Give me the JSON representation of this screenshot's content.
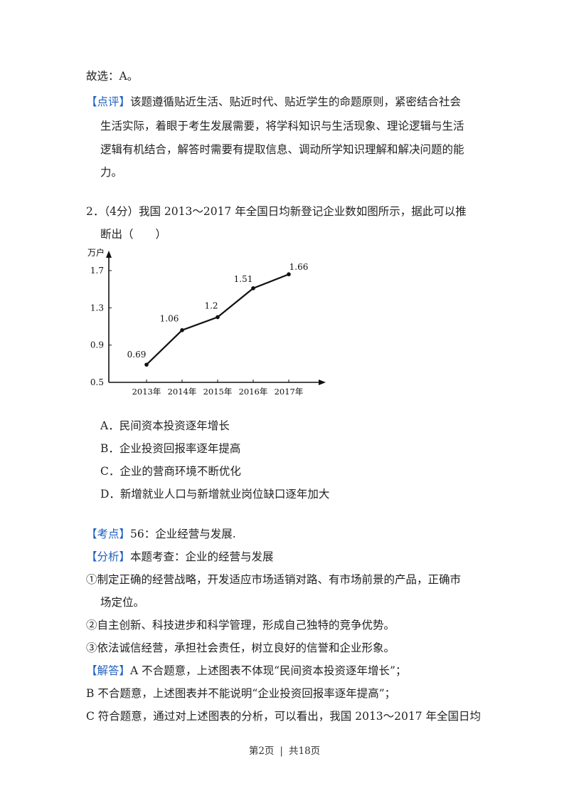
{
  "prev": {
    "answer": "故选：A。",
    "comment_tag": "【点评】",
    "comment_lines": [
      "该题遵循贴近生活、贴近时代、贴近学生的命题原则，紧密结合社会",
      "生活实际，着眼于考生发展需要，将学科知识与生活现象、理论逻辑与生活",
      "逻辑有机结合，解答时需要有提取信息、调动所学知识理解和解决问题的能",
      "力。"
    ]
  },
  "question": {
    "line1": "2．（4分）我国 2013～2017 年全国日均新登记企业数如图所示，据此可以推",
    "line2": "断出（　　）",
    "options": [
      "A．民间资本投资逐年增长",
      "B．企业投资回报率逐年提高",
      "C．企业的营商环境不断优化",
      "D．新增就业人口与新增就业岗位缺口逐年加大"
    ]
  },
  "analysis": {
    "kaodian_tag": "【考点】",
    "kaodian_text": "56：企业经营与发展.",
    "fenxi_tag": "【分析】",
    "fenxi_text": "本题考查：企业的经营与发展",
    "points": [
      "①制定正确的经营战略，开发适应市场适销对路、有市场前景的产品，正确市",
      "场定位。",
      "②自主创新、科技进步和科学管理，形成自己独特的竞争优势。",
      "③依法诚信经营，承担社会责任，树立良好的信誉和企业形象。"
    ],
    "jieda_tag": "【解答】",
    "jieda_line1": "A 不合题意，上述图表不体现“民间资本投资逐年增长”；",
    "jieda_line2": "B 不合题意，上述图表并不能说明“企业投资回报率逐年提高”；",
    "jieda_line3": "C 符合题意，通过对上述图表的分析，可以看出，我国 2013～2017 年全国日均"
  },
  "footer": {
    "page": "第2页",
    "total": "共18页",
    "sep": "|"
  },
  "chart_data": {
    "type": "line",
    "categories": [
      "2013年",
      "2014年",
      "2015年",
      "2016年",
      "2017年"
    ],
    "values": [
      0.69,
      1.06,
      1.2,
      1.51,
      1.66
    ],
    "data_labels": [
      "0.69",
      "1.06",
      "1.2",
      "1.51",
      "1.66"
    ],
    "ylabel": "万户",
    "yticks": [
      0.5,
      0.9,
      1.3,
      1.7
    ],
    "ytick_labels": [
      "0.5",
      "0.9",
      "1.3",
      "1.7"
    ],
    "ylim": [
      0.5,
      1.7
    ],
    "grid": false,
    "legend": "none"
  }
}
